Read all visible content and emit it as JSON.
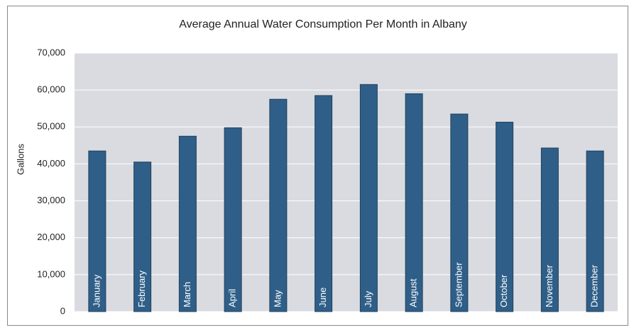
{
  "chart_data": {
    "type": "bar",
    "title": "Average Annual Water Consumption Per Month in Albany",
    "y_label": "Gallons",
    "categories": [
      "January",
      "February",
      "March",
      "April",
      "May",
      "June",
      "July",
      "August",
      "September",
      "October",
      "November",
      "December"
    ],
    "values": [
      43500,
      40500,
      47500,
      49800,
      57500,
      58500,
      61500,
      59000,
      53500,
      51300,
      44300,
      43500
    ],
    "color": "#2f5f88",
    "ylim": [
      0,
      70000
    ],
    "yticks": [
      0,
      {
        "value": 10000,
        "label": "10,000"
      },
      {
        "value": 20000,
        "label": "20,000"
      },
      {
        "value": 30000,
        "label": "30,000"
      },
      {
        "value": 40000,
        "label": "40,000"
      },
      {
        "value": 50000,
        "label": "50,000"
      },
      {
        "value": 60000,
        "label": "60,000"
      },
      {
        "value": 70000,
        "label": "70,000"
      }
    ],
    "grid": true
  }
}
